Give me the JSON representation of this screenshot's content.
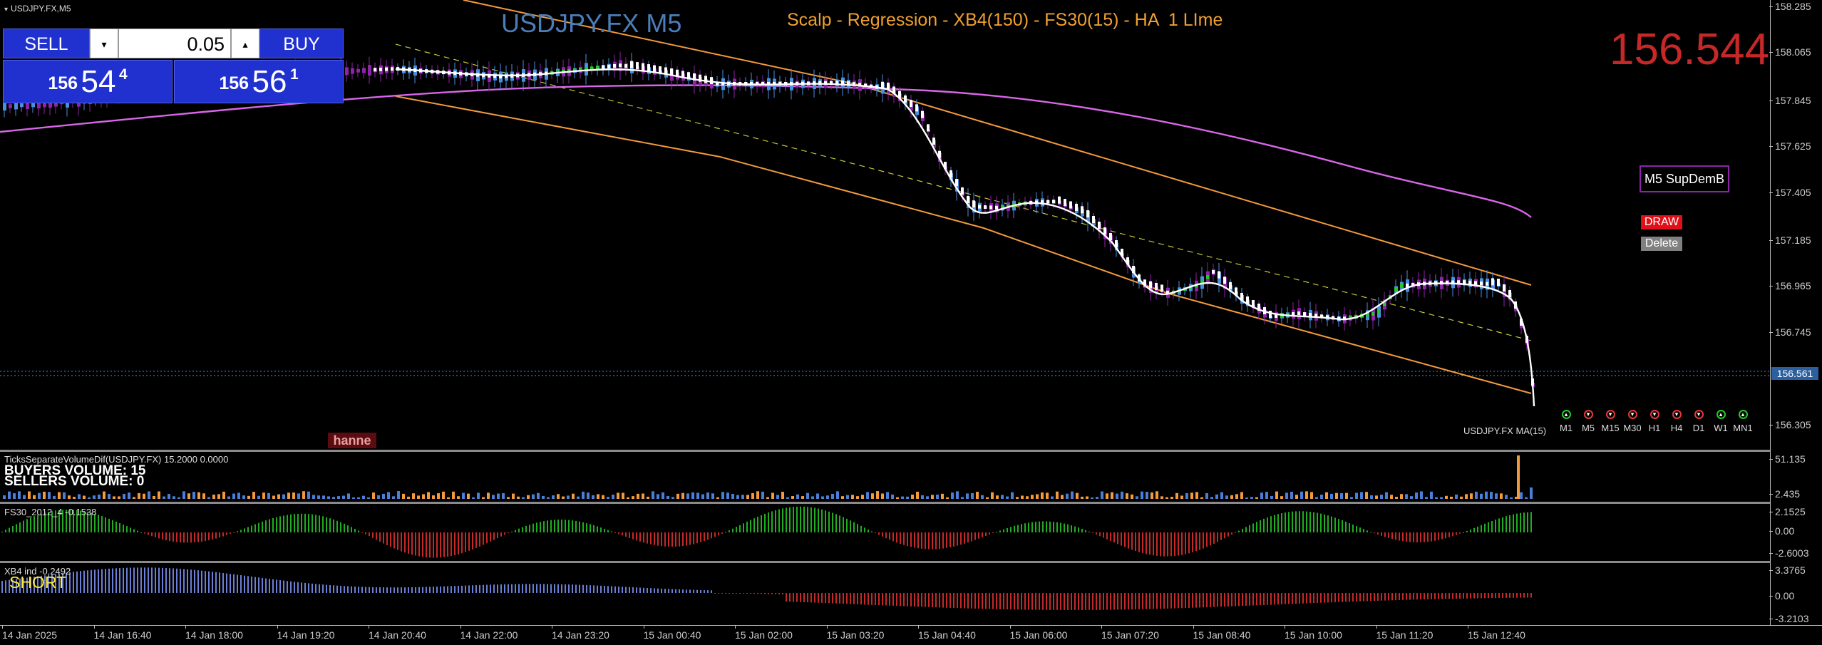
{
  "chart": {
    "symbol_label": "USDJPY.FX,M5",
    "title": "USDJPY.FX M5",
    "strategy": "Scalp - Regression - XB4(150) - FS30(15) - HA  1 LIme",
    "big_price": "156.544",
    "current_price_tag": "156.561",
    "price_ticks": [
      "158.285",
      "158.065",
      "157.845",
      "157.625",
      "157.405",
      "157.185",
      "156.965",
      "156.745",
      "156.305"
    ],
    "ma_label": "USDJPY.FX MA(15)",
    "hanne_label": "hanne"
  },
  "trade_panel": {
    "sell_label": "SELL",
    "buy_label": "BUY",
    "lot_value": "0.05",
    "lot_down": "▾",
    "lot_up": "▴",
    "sell_quote": {
      "small": "156",
      "big": "54",
      "sup": "4"
    },
    "buy_quote": {
      "small": "156",
      "big": "56",
      "sup": "1"
    }
  },
  "objects": {
    "supdem_label": "M5 SupDemB",
    "draw_label": "DRAW",
    "delete_label": "Delete"
  },
  "timeframes": [
    {
      "label": "M1",
      "status": "up"
    },
    {
      "label": "M5",
      "status": "down"
    },
    {
      "label": "M15",
      "status": "down"
    },
    {
      "label": "M30",
      "status": "down"
    },
    {
      "label": "H1",
      "status": "down"
    },
    {
      "label": "H4",
      "status": "down"
    },
    {
      "label": "D1",
      "status": "down"
    },
    {
      "label": "W1",
      "status": "up"
    },
    {
      "label": "MN1",
      "status": "up"
    }
  ],
  "volume_indicator": {
    "header": "TicksSeparateVolumeDif(USDJPY.FX) 15.2000 0.0000",
    "buyers": "BUYERS VOLUME: 15",
    "sellers": "SELLERS VOLUME: 0",
    "ticks": [
      "51.135",
      "2.435"
    ]
  },
  "fs30_indicator": {
    "header": "FS30_2012_4 -0.1538",
    "ticks": [
      "2.1525",
      "0.00",
      "-2.6003"
    ]
  },
  "xb4_indicator": {
    "header": "XB4 ind -0.2492",
    "signal": "SHORT",
    "ticks": [
      "3.3765",
      "0.00",
      "-3.2103"
    ]
  },
  "time_labels": [
    "14 Jan 2025",
    "14 Jan 16:40",
    "14 Jan 18:00",
    "14 Jan 19:20",
    "14 Jan 20:40",
    "14 Jan 22:00",
    "14 Jan 23:20",
    "15 Jan 00:40",
    "15 Jan 02:00",
    "15 Jan 03:20",
    "15 Jan 04:40",
    "15 Jan 06:00",
    "15 Jan 07:20",
    "15 Jan 08:40",
    "15 Jan 10:00",
    "15 Jan 11:20",
    "15 Jan 12:40"
  ],
  "colors": {
    "regression_channel": "#f39a3c",
    "long_ma": "#d866e8",
    "candle_up": "#4a90e2",
    "candle_down": "#8e24aa",
    "ha_white": "#ffffff",
    "ha_green": "#22cc22",
    "osc_positive": "#1fae1f",
    "osc_negative": "#c62828",
    "xb4_positive": "#6b7fd6"
  }
}
